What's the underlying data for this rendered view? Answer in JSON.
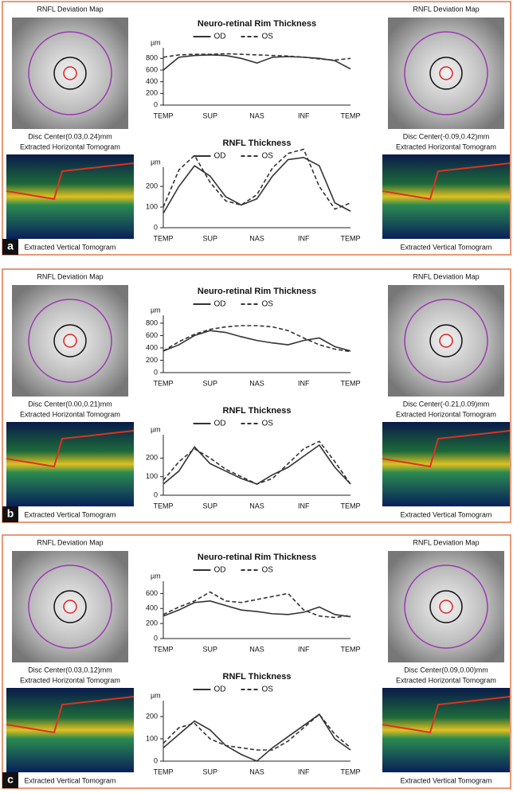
{
  "panels": [
    {
      "label": "a",
      "left": {
        "title": "RNFL Deviation Map",
        "disc": "Disc Center(0.03,0.24)mm",
        "horizontal": "Extracted Horizontal Tomogram",
        "vertical": "Extracted Vertical Tomogram"
      },
      "right": {
        "title": "RNFL Deviation Map",
        "disc": "Disc Center(-0.09,0.42)mm",
        "horizontal": "Extracted Horizontal Tomogram",
        "vertical": "Extracted Vertical Tomogram"
      }
    },
    {
      "label": "b",
      "left": {
        "title": "RNFL Deviation Map",
        "disc": "Disc Center(0.00,0.21)mm",
        "horizontal": "Extracted Horizontal Tomogram",
        "vertical": "Extracted Vertical Tomogram"
      },
      "right": {
        "title": "RNFL Deviation Map",
        "disc": "Disc Center(-0.21,0.09)mm",
        "horizontal": "Extracted Horizontal Tomogram",
        "vertical": "Extracted Vertical Tomogram"
      }
    },
    {
      "label": "c",
      "left": {
        "title": "RNFL Deviation Map",
        "disc": "Disc Center(0.03,0.12)mm",
        "horizontal": "Extracted Horizontal Tomogram",
        "vertical": "Extracted Vertical Tomogram"
      },
      "right": {
        "title": "RNFL Deviation Map",
        "disc": "Disc Center(0.09,0.00)mm",
        "horizontal": "Extracted Horizontal Tomogram",
        "vertical": "Extracted Vertical Tomogram"
      }
    }
  ],
  "chart_data": [
    {
      "type": "line",
      "title": "Neuro-retinal Rim Thickness",
      "unit": "µm",
      "categories": [
        "TEMP",
        null,
        null,
        "SUP",
        null,
        null,
        "NAS",
        null,
        null,
        "INF",
        null,
        null,
        "TEMP"
      ],
      "ylim": [
        0,
        900
      ],
      "yticks": [
        0,
        200,
        400,
        600,
        800
      ],
      "series": [
        {
          "name": "OD",
          "color": "#333333",
          "dashed": false,
          "values": [
            600,
            820,
            850,
            860,
            850,
            800,
            720,
            820,
            830,
            820,
            800,
            760,
            620
          ]
        },
        {
          "name": "OS",
          "color": "#333333",
          "dashed": true,
          "values": [
            820,
            860,
            870,
            870,
            880,
            870,
            860,
            850,
            840,
            820,
            790,
            770,
            800
          ]
        }
      ]
    },
    {
      "type": "line",
      "title": "RNFL Thickness",
      "unit": "µm",
      "categories": [
        "TEMP",
        null,
        null,
        "SUP",
        null,
        null,
        "NAS",
        null,
        null,
        "INF",
        null,
        null,
        "TEMP"
      ],
      "ylim": [
        0,
        270
      ],
      "yticks": [
        0,
        100,
        200
      ],
      "series": [
        {
          "name": "OD",
          "color": "#333333",
          "dashed": false,
          "values": [
            70,
            200,
            300,
            250,
            150,
            110,
            140,
            250,
            330,
            340,
            300,
            120,
            80
          ]
        },
        {
          "name": "OS",
          "color": "#333333",
          "dashed": true,
          "values": [
            100,
            280,
            350,
            220,
            130,
            110,
            160,
            290,
            360,
            380,
            200,
            90,
            120
          ]
        }
      ]
    },
    {
      "type": "line",
      "title": "Neuro-retinal Rim Thickness",
      "unit": "µm",
      "categories": [
        "TEMP",
        null,
        null,
        "SUP",
        null,
        null,
        "NAS",
        null,
        null,
        "INF",
        null,
        null,
        "TEMP"
      ],
      "ylim": [
        0,
        850
      ],
      "yticks": [
        0,
        200,
        400,
        600,
        800
      ],
      "series": [
        {
          "name": "OD",
          "color": "#333333",
          "dashed": false,
          "values": [
            350,
            450,
            600,
            680,
            650,
            580,
            520,
            480,
            450,
            520,
            560,
            420,
            350
          ]
        },
        {
          "name": "OS",
          "color": "#333333",
          "dashed": true,
          "values": [
            350,
            500,
            620,
            700,
            740,
            760,
            760,
            740,
            680,
            560,
            450,
            380,
            340
          ]
        }
      ]
    },
    {
      "type": "line",
      "title": "RNFL Thickness",
      "unit": "µm",
      "categories": [
        "TEMP",
        null,
        null,
        "SUP",
        null,
        null,
        "NAS",
        null,
        null,
        "INF",
        null,
        null,
        "TEMP"
      ],
      "ylim": [
        0,
        300
      ],
      "yticks": [
        0,
        100,
        200
      ],
      "series": [
        {
          "name": "OD",
          "color": "#333333",
          "dashed": false,
          "values": [
            60,
            130,
            260,
            170,
            130,
            90,
            60,
            110,
            150,
            210,
            270,
            150,
            60
          ]
        },
        {
          "name": "OS",
          "color": "#333333",
          "dashed": true,
          "values": [
            80,
            180,
            250,
            200,
            140,
            100,
            60,
            90,
            170,
            250,
            290,
            180,
            60
          ]
        }
      ]
    },
    {
      "type": "line",
      "title": "Neuro-retinal Rim Thickness",
      "unit": "µm",
      "categories": [
        "TEMP",
        null,
        null,
        "SUP",
        null,
        null,
        "NAS",
        null,
        null,
        "INF",
        null,
        null,
        "TEMP"
      ],
      "ylim": [
        0,
        700
      ],
      "yticks": [
        0,
        200,
        400,
        600
      ],
      "series": [
        {
          "name": "OD",
          "color": "#333333",
          "dashed": false,
          "values": [
            300,
            380,
            480,
            500,
            440,
            380,
            360,
            330,
            320,
            350,
            420,
            320,
            290
          ]
        },
        {
          "name": "OS",
          "color": "#333333",
          "dashed": true,
          "values": [
            320,
            420,
            500,
            620,
            500,
            480,
            520,
            560,
            600,
            380,
            300,
            280,
            310
          ]
        }
      ]
    },
    {
      "type": "line",
      "title": "RNFL Thickness",
      "unit": "µm",
      "categories": [
        "TEMP",
        null,
        null,
        "SUP",
        null,
        null,
        "NAS",
        null,
        null,
        "INF",
        null,
        null,
        "TEMP"
      ],
      "ylim": [
        0,
        250
      ],
      "yticks": [
        0,
        100,
        200
      ],
      "series": [
        {
          "name": "OD",
          "color": "#333333",
          "dashed": false,
          "values": [
            60,
            120,
            180,
            140,
            70,
            30,
            0,
            60,
            110,
            160,
            210,
            100,
            50
          ]
        },
        {
          "name": "OS",
          "color": "#333333",
          "dashed": true,
          "values": [
            80,
            150,
            170,
            100,
            70,
            60,
            50,
            50,
            90,
            150,
            210,
            120,
            60
          ]
        }
      ]
    }
  ]
}
